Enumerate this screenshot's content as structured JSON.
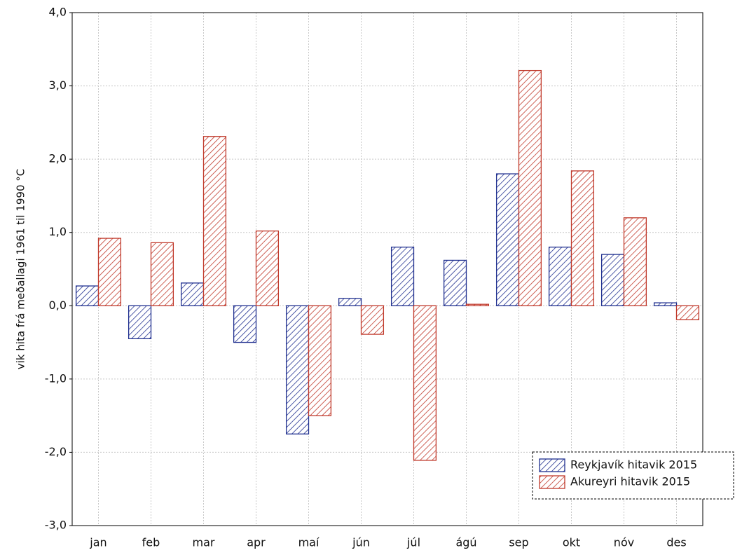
{
  "chart_data": {
    "type": "bar",
    "y_label": "vik hita frá meðallagi 1961 til 1990 °C",
    "categories": [
      "jan",
      "feb",
      "mar",
      "apr",
      "maí",
      "jún",
      "júl",
      "ágú",
      "sep",
      "okt",
      "nóv",
      "des"
    ],
    "series": [
      {
        "name": "Reykjavík hitavik 2015",
        "color": "#1f2f8f",
        "values": [
          0.27,
          -0.45,
          0.31,
          -0.5,
          -1.75,
          0.1,
          0.8,
          0.62,
          1.8,
          0.8,
          0.7,
          0.04
        ]
      },
      {
        "name": "Akureyri hitavik 2015",
        "color": "#c0392b",
        "values": [
          0.92,
          0.86,
          2.31,
          1.02,
          -1.5,
          -0.39,
          -2.11,
          0.02,
          3.21,
          1.84,
          1.2,
          -0.19
        ]
      }
    ],
    "ylim": [
      -3,
      4
    ],
    "yticks": [
      {
        "value": -3,
        "label": "-3,0"
      },
      {
        "value": -2,
        "label": "-2,0"
      },
      {
        "value": -1,
        "label": "-1,0"
      },
      {
        "value": 0,
        "label": "0,0"
      },
      {
        "value": 1,
        "label": "1,0"
      },
      {
        "value": 2,
        "label": "2,0"
      },
      {
        "value": 3,
        "label": "3,0"
      },
      {
        "value": 4,
        "label": "4,0"
      }
    ],
    "grid": true,
    "legend": "lower right",
    "hatch": true
  }
}
